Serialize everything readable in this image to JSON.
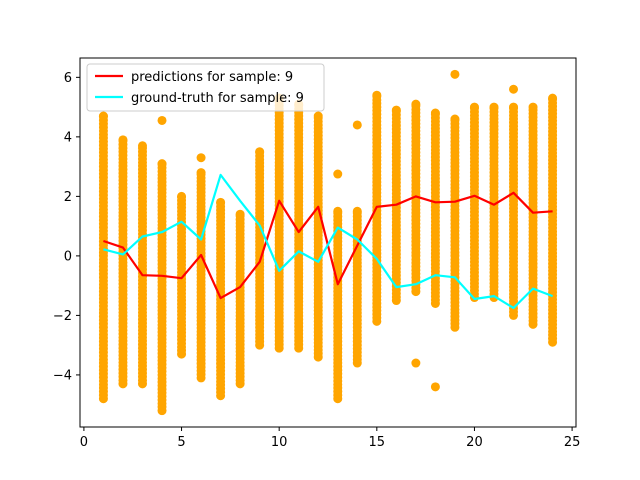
{
  "chart_data": {
    "type": "scatter",
    "title": "",
    "xlabel": "",
    "ylabel": "",
    "xlim": [
      -0.2,
      25.2
    ],
    "ylim": [
      -5.75,
      6.65
    ],
    "x_ticks": [
      0,
      5,
      10,
      15,
      20,
      25
    ],
    "x_tick_labels": [
      "0",
      "5",
      "10",
      "15",
      "20",
      "25"
    ],
    "y_ticks": [
      -4,
      -2,
      0,
      2,
      4,
      6
    ],
    "y_tick_labels": [
      "−4",
      "−2",
      "0",
      "2",
      "4",
      "6"
    ],
    "grid": false,
    "legend_placement": "top-left",
    "scatter": {
      "color": "#ffa500",
      "columns": [
        {
          "x": 1,
          "min": -4.8,
          "max": 4.7,
          "extra": []
        },
        {
          "x": 2,
          "min": -4.3,
          "max": 3.9,
          "extra": []
        },
        {
          "x": 3,
          "min": -4.3,
          "max": 3.7,
          "extra": []
        },
        {
          "x": 4,
          "min": -5.2,
          "max": 3.1,
          "extra": [
            4.55
          ]
        },
        {
          "x": 5,
          "min": -3.3,
          "max": 2.0,
          "extra": []
        },
        {
          "x": 6,
          "min": -4.1,
          "max": 2.8,
          "extra": [
            3.3
          ]
        },
        {
          "x": 7,
          "min": -4.7,
          "max": 1.8,
          "extra": []
        },
        {
          "x": 8,
          "min": -4.3,
          "max": 1.4,
          "extra": []
        },
        {
          "x": 9,
          "min": -3.0,
          "max": 3.5,
          "extra": []
        },
        {
          "x": 10,
          "min": -3.1,
          "max": 5.3,
          "extra": []
        },
        {
          "x": 11,
          "min": -3.1,
          "max": 5.1,
          "extra": []
        },
        {
          "x": 12,
          "min": -3.4,
          "max": 4.7,
          "extra": []
        },
        {
          "x": 13,
          "min": -4.8,
          "max": 1.5,
          "extra": [
            2.75
          ]
        },
        {
          "x": 14,
          "min": -3.6,
          "max": 1.5,
          "extra": [
            4.4
          ]
        },
        {
          "x": 15,
          "min": -2.2,
          "max": 5.4,
          "extra": []
        },
        {
          "x": 16,
          "min": -1.5,
          "max": 4.9,
          "extra": []
        },
        {
          "x": 17,
          "min": -1.2,
          "max": 5.1,
          "extra": [
            -3.6
          ]
        },
        {
          "x": 18,
          "min": -1.6,
          "max": 4.8,
          "extra": [
            -4.4
          ]
        },
        {
          "x": 19,
          "min": -2.4,
          "max": 4.6,
          "extra": [
            6.1
          ]
        },
        {
          "x": 20,
          "min": -1.4,
          "max": 5.0,
          "extra": []
        },
        {
          "x": 21,
          "min": -1.4,
          "max": 5.0,
          "extra": []
        },
        {
          "x": 22,
          "min": -2.0,
          "max": 5.0,
          "extra": [
            5.6
          ]
        },
        {
          "x": 23,
          "min": -2.3,
          "max": 5.0,
          "extra": []
        },
        {
          "x": 24,
          "min": -2.9,
          "max": 5.3,
          "extra": []
        }
      ]
    },
    "series": [
      {
        "name": "predictions for sample: 9",
        "color": "#ff0000",
        "x": [
          1,
          2,
          3,
          4,
          5,
          6,
          7,
          8,
          9,
          10,
          11,
          12,
          13,
          14,
          15,
          16,
          17,
          18,
          19,
          20,
          21,
          22,
          23,
          24
        ],
        "y": [
          0.5,
          0.28,
          -0.65,
          -0.67,
          -0.75,
          0.03,
          -1.42,
          -1.05,
          -0.2,
          1.85,
          0.8,
          1.65,
          -0.95,
          0.35,
          1.65,
          1.72,
          2.0,
          1.8,
          1.82,
          2.02,
          1.72,
          2.12,
          1.45,
          1.5
        ]
      },
      {
        "name": "ground-truth for sample: 9",
        "color": "#00ffff",
        "x": [
          1,
          2,
          3,
          4,
          5,
          6,
          7,
          8,
          9,
          10,
          11,
          12,
          13,
          14,
          15,
          16,
          17,
          18,
          19,
          20,
          21,
          22,
          23,
          24
        ],
        "y": [
          0.22,
          0.05,
          0.65,
          0.8,
          1.15,
          0.55,
          2.72,
          1.85,
          1.02,
          -0.5,
          0.15,
          -0.2,
          0.95,
          0.55,
          -0.1,
          -1.05,
          -0.95,
          -0.65,
          -0.72,
          -1.45,
          -1.35,
          -1.75,
          -1.1,
          -1.35
        ]
      }
    ]
  }
}
